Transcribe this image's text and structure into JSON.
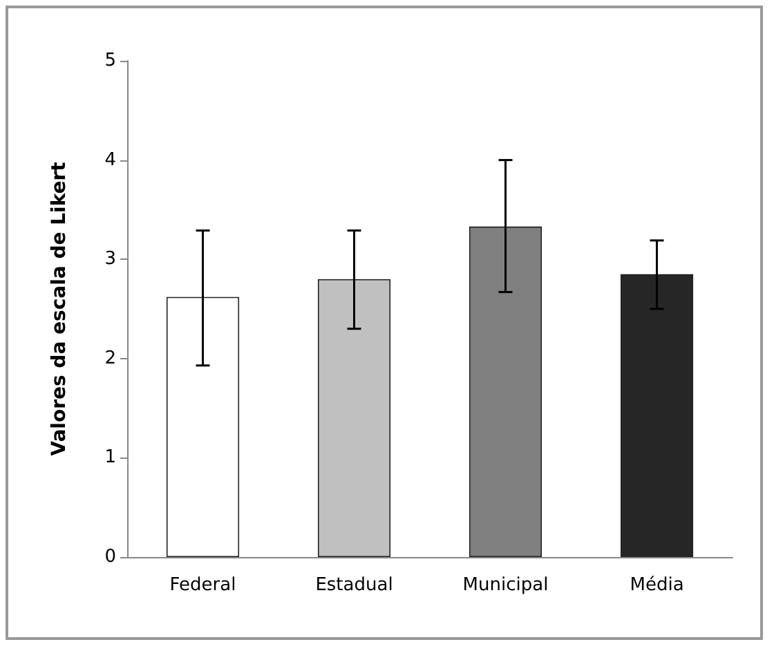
{
  "chart_data": {
    "type": "bar",
    "ylabel": "Valores da escala de Likert",
    "categories": [
      "Federal",
      "Estadual",
      "Municipal",
      "Média"
    ],
    "values": [
      2.62,
      2.8,
      3.33,
      2.85
    ],
    "colors": [
      "#ffffff",
      "#c0c0c0",
      "#808080",
      "#262626"
    ],
    "errors": [
      [
        1.93,
        3.29
      ],
      [
        2.3,
        3.29
      ],
      [
        2.67,
        4.0
      ],
      [
        2.5,
        3.19
      ]
    ],
    "ylim": [
      0,
      5
    ],
    "yticks": [
      0,
      1,
      2,
      3,
      4,
      5
    ],
    "grid": false
  }
}
